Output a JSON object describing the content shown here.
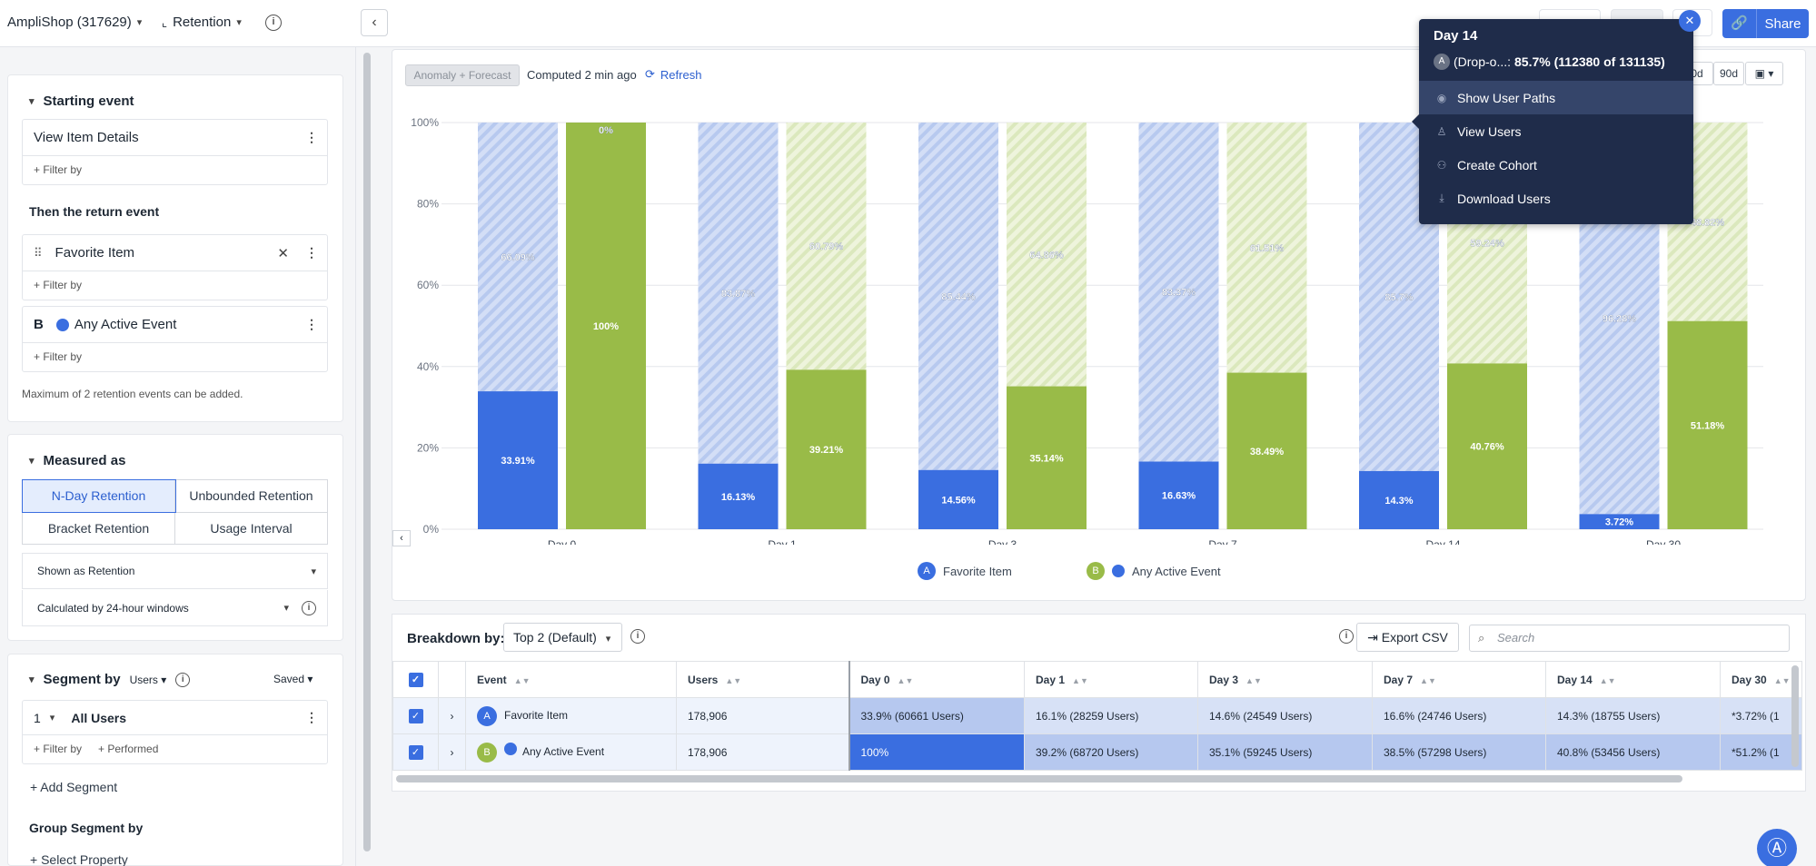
{
  "topbar": {
    "app_name": "AmpliShop (317629)",
    "chart_type": "Retention",
    "share_label": "Share"
  },
  "left": {
    "starting_event_title": "Starting event",
    "starting_event": "View Item Details",
    "filter_by": "+ Filter by",
    "return_event_title": "Then the return event",
    "return_event": "Favorite Item",
    "event_b_letter": "B",
    "event_b": "Any Active Event",
    "max_note": "Maximum of 2 retention events can be added.",
    "measured_as_title": "Measured as",
    "measure_options": [
      "N-Day Retention",
      "Unbounded Retention",
      "Bracket Retention",
      "Usage Interval"
    ],
    "shown_as": "Shown as Retention",
    "calculated_by": "Calculated by 24-hour windows",
    "segment_by_title": "Segment by",
    "segment_users": "Users",
    "segment_saved": "Saved",
    "segment_num": "1",
    "segment_name": "All Users",
    "performed": "+ Performed",
    "add_segment": "+ Add Segment",
    "group_segment_title": "Group Segment by",
    "select_property": "+ Select Property"
  },
  "chart_toolbar": {
    "anomaly": "Anomaly + Forecast",
    "computed": "Computed 2 min ago",
    "refresh": "Refresh",
    "range_30": "0d",
    "range_90": "90d"
  },
  "chart_data": {
    "type": "bar",
    "categories": [
      "Day 0",
      "Day 1",
      "Day 3",
      "Day 7",
      "Day 14",
      "Day 30"
    ],
    "yticks": [
      "0%",
      "20%",
      "40%",
      "60%",
      "80%",
      "100%"
    ],
    "ylim": [
      0,
      100
    ],
    "series": [
      {
        "name": "Favorite Item",
        "color": "#3a6ee0",
        "values": [
          33.91,
          16.13,
          14.56,
          16.63,
          14.3,
          3.72
        ],
        "labels": [
          "33.91%",
          "16.13%",
          "14.56%",
          "16.63%",
          "14.3%",
          "3.72%"
        ],
        "dropoff": [
          "66.09%",
          "83.87%",
          "85.44%",
          "83.37%",
          "85.7%",
          "96.28%"
        ]
      },
      {
        "name": "Any Active Event",
        "color": "#99bb48",
        "values": [
          100,
          39.21,
          35.14,
          38.49,
          40.76,
          51.18
        ],
        "labels": [
          "100%",
          "39.21%",
          "35.14%",
          "38.49%",
          "40.76%",
          "51.18%"
        ],
        "dropoff": [
          "0%",
          "60.79%",
          "64.86%",
          "61.51%",
          "59.24%",
          "48.82%"
        ]
      }
    ]
  },
  "legend": {
    "a_letter": "A",
    "a_name": "Favorite Item",
    "b_letter": "B",
    "b_name": "Any Active Event"
  },
  "tooltip": {
    "title": "Day 14",
    "badge": "A",
    "prefix": "(Drop-o...: ",
    "value": "85.7% (112380 of 131135)",
    "items": [
      "Show User Paths",
      "View Users",
      "Create Cohort",
      "Download Users"
    ]
  },
  "breakdown": {
    "label": "Breakdown by:",
    "select": "Top 2 (Default)",
    "export": "Export CSV",
    "search_placeholder": "Search",
    "columns": [
      "Event",
      "Users",
      "Day 0",
      "Day 1",
      "Day 3",
      "Day 7",
      "Day 14",
      "Day 30"
    ],
    "rows": [
      {
        "badge": "A",
        "event": "Favorite Item",
        "users": "178,906",
        "cells": [
          "33.9% (60661 Users)",
          "16.1% (28259 Users)",
          "14.6% (24549 Users)",
          "16.6% (24746 Users)",
          "14.3% (18755 Users)",
          "*3.72% (1"
        ]
      },
      {
        "badge": "B",
        "event": "Any Active Event",
        "users": "178,906",
        "cells": [
          "100%",
          "39.2% (68720 Users)",
          "35.1% (59245 Users)",
          "38.5% (57298 Users)",
          "40.8% (53456 Users)",
          "*51.2% (1"
        ]
      }
    ]
  }
}
